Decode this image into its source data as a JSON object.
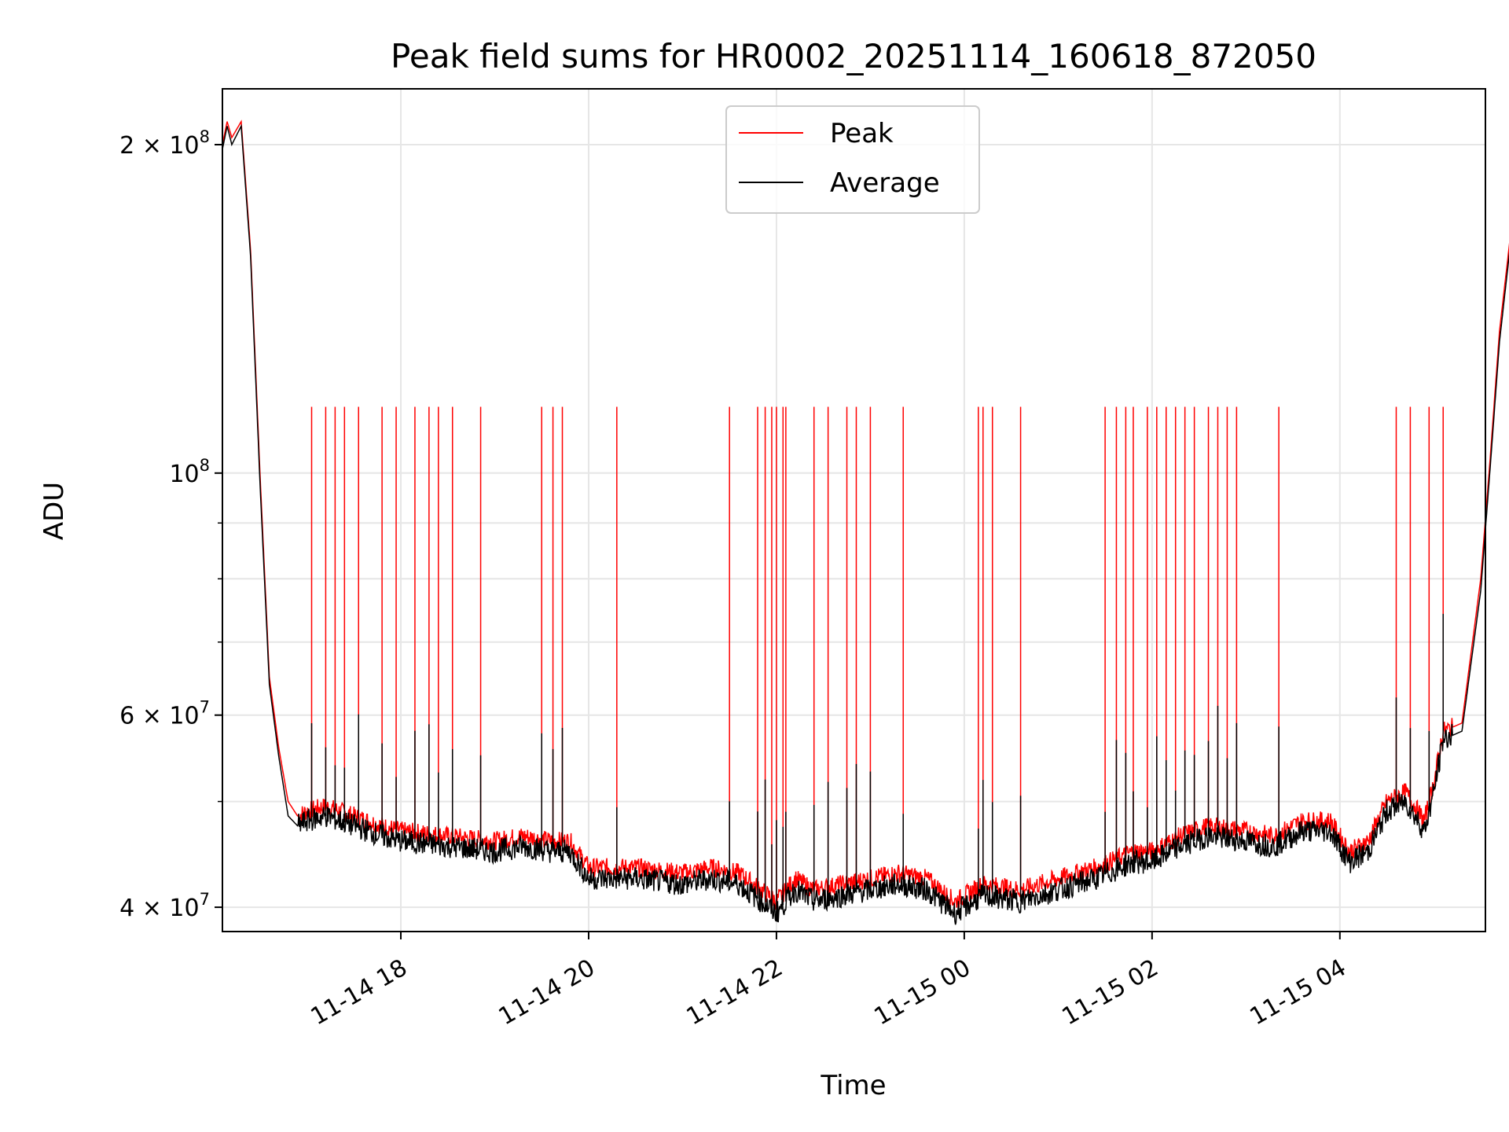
{
  "chart_data": {
    "type": "line",
    "title": "Peak field sums for HR0002_20251114_160618_872050",
    "xlabel": "Time",
    "ylabel": "ADU",
    "yscale": "log",
    "ylim": [
      38000000,
      225000000
    ],
    "xlim_hours": [
      16.1,
      5.55
    ],
    "x_ticks": [
      {
        "hours": 18,
        "label": "11-14 18"
      },
      {
        "hours": 20,
        "label": "11-14 20"
      },
      {
        "hours": 22,
        "label": "11-14 22"
      },
      {
        "hours": 24,
        "label": "11-15 00"
      },
      {
        "hours": 26,
        "label": "11-15 02"
      },
      {
        "hours": 28,
        "label": "11-15 04"
      }
    ],
    "y_ticks": [
      {
        "value": 40000000,
        "base": "4 × 10",
        "exp": "7"
      },
      {
        "value": 60000000,
        "base": "6 × 10",
        "exp": "7"
      },
      {
        "value": 100000000,
        "base": "10",
        "exp": "8"
      },
      {
        "value": 200000000,
        "base": "2 × 10",
        "exp": "8"
      }
    ],
    "grid": true,
    "legend": {
      "position": "top-center",
      "entries": [
        "Peak",
        "Average"
      ]
    },
    "series": [
      {
        "name": "Peak",
        "color": "#ff0000",
        "x_hours": [
          16.1,
          16.15,
          16.2,
          16.3,
          16.4,
          16.5,
          16.6,
          16.7,
          16.8,
          16.9,
          17.0,
          17.2,
          17.5,
          17.8,
          18.0,
          18.5,
          19.0,
          19.3,
          19.6,
          19.8,
          20.0,
          20.5,
          21.0,
          21.3,
          21.6,
          22.0,
          22.2,
          22.4,
          22.7,
          23.0,
          23.3,
          23.6,
          23.9,
          24.2,
          24.6,
          25.0,
          25.4,
          25.8,
          26.0,
          26.3,
          26.6,
          27.0,
          27.3,
          27.6,
          27.9,
          28.1,
          28.3,
          28.5,
          28.7,
          28.9,
          29.0,
          29.1,
          29.3,
          29.5,
          29.6,
          29.7,
          29.85,
          30.0,
          30.2,
          30.4
        ],
        "values": [
          200000000,
          210000000,
          203000000,
          210000000,
          160000000,
          100000000,
          65000000,
          56000000,
          50000000,
          48500000,
          49000000,
          49500000,
          48500000,
          47500000,
          47000000,
          46500000,
          46000000,
          46500000,
          46000000,
          46000000,
          43500000,
          43500000,
          43000000,
          43500000,
          43000000,
          40500000,
          42500000,
          41500000,
          42000000,
          42500000,
          43000000,
          42500000,
          40500000,
          42000000,
          41500000,
          42500000,
          43500000,
          45000000,
          45000000,
          46500000,
          47500000,
          47000000,
          46500000,
          48000000,
          48000000,
          45000000,
          46000000,
          50000000,
          51000000,
          48000000,
          52000000,
          58000000,
          59000000,
          80000000,
          103000000,
          135000000,
          175000000,
          210000000,
          225000000,
          225000000
        ],
        "spikes": {
          "value": 115000000,
          "x_hours": [
            17.05,
            17.2,
            17.3,
            17.4,
            17.55,
            17.8,
            17.95,
            18.15,
            18.3,
            18.4,
            18.55,
            18.85,
            19.5,
            19.62,
            19.72,
            20.3,
            21.5,
            21.8,
            21.88,
            21.95,
            22.0,
            22.07,
            22.1,
            22.4,
            22.55,
            22.75,
            22.85,
            23.0,
            23.35,
            24.15,
            24.2,
            24.3,
            24.6,
            25.5,
            25.62,
            25.72,
            25.8,
            25.95,
            26.05,
            26.15,
            26.25,
            26.35,
            26.45,
            26.6,
            26.7,
            26.8,
            26.9,
            27.35,
            28.6,
            28.75,
            28.95,
            29.1
          ],
          "x_note": "spike times approximate"
        }
      },
      {
        "name": "Average",
        "color": "#000000",
        "x_hours": [
          16.1,
          16.15,
          16.2,
          16.3,
          16.4,
          16.5,
          16.6,
          16.7,
          16.8,
          16.9,
          17.0,
          17.2,
          17.5,
          17.8,
          18.0,
          18.5,
          19.0,
          19.3,
          19.6,
          19.8,
          20.0,
          20.5,
          21.0,
          21.3,
          21.6,
          22.0,
          22.2,
          22.4,
          22.7,
          23.0,
          23.3,
          23.6,
          23.9,
          24.2,
          24.6,
          25.0,
          25.4,
          25.8,
          26.0,
          26.3,
          26.6,
          27.0,
          27.3,
          27.6,
          27.9,
          28.1,
          28.3,
          28.5,
          28.7,
          28.9,
          29.0,
          29.1,
          29.3,
          29.5,
          29.6,
          29.7,
          29.85,
          30.0,
          30.2,
          30.4
        ],
        "values": [
          198000000,
          208000000,
          200000000,
          208000000,
          158000000,
          98000000,
          64000000,
          55000000,
          48500000,
          47500000,
          48000000,
          48500000,
          47500000,
          46500000,
          46000000,
          45500000,
          45000000,
          45500000,
          45000000,
          45000000,
          42500000,
          42500000,
          42000000,
          42500000,
          42000000,
          39500000,
          41500000,
          40500000,
          41000000,
          41500000,
          42000000,
          41500000,
          39500000,
          41000000,
          40500000,
          41500000,
          42500000,
          44000000,
          44000000,
          45500000,
          46500000,
          46000000,
          45500000,
          47000000,
          47000000,
          44000000,
          45000000,
          49000000,
          50000000,
          47000000,
          51000000,
          57000000,
          58000000,
          78000000,
          101000000,
          132000000,
          172000000,
          208000000,
          223000000,
          223000000
        ]
      }
    ]
  }
}
